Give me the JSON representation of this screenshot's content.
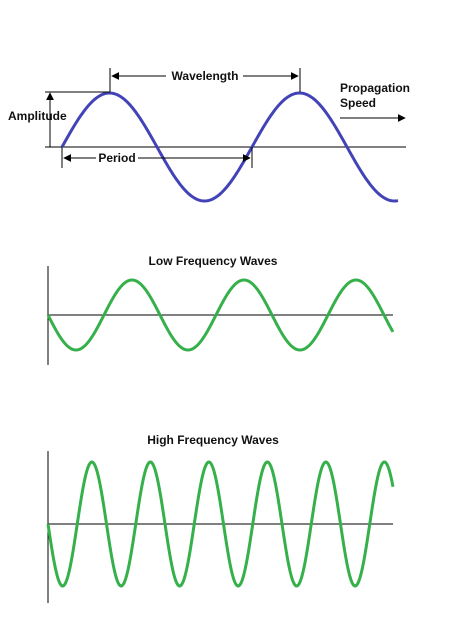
{
  "wave_diagram": {
    "wavelength": "Wavelength",
    "amplitude": "Amplitude",
    "propagation": [
      "Propagation",
      "Speed"
    ],
    "period": "Period"
  },
  "low_frequency": {
    "title": "Low Frequency Waves"
  },
  "high_frequency": {
    "title": "High Frequency Waves"
  }
}
